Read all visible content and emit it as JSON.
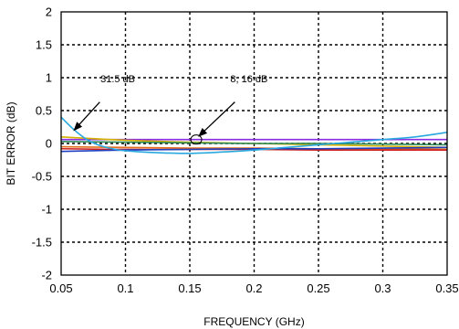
{
  "chart_data": {
    "type": "line",
    "title": "",
    "xlabel": "FREQUENCY (GHz)",
    "ylabel": "BIT ERROR (dB)",
    "xlim": [
      0.05,
      0.35
    ],
    "ylim": [
      -2,
      2
    ],
    "x_ticks": [
      0.05,
      0.1,
      0.15,
      0.2,
      0.25,
      0.3,
      0.35
    ],
    "x_tick_labels": [
      "0.05",
      "0.1",
      "0.15",
      "0.2",
      "0.25",
      "0.3",
      "0.35"
    ],
    "y_ticks": [
      2,
      1.5,
      1,
      0.5,
      0,
      -0.5,
      -1,
      -1.5,
      -2
    ],
    "y_tick_labels": [
      "2",
      "1.5",
      "1",
      "0.5",
      "0",
      "-0.5",
      "-1",
      "-1.5",
      "-2"
    ],
    "grid": true,
    "series": [
      {
        "color": "#29a8e0",
        "x": [
          0.05,
          0.06,
          0.07,
          0.08,
          0.09,
          0.1,
          0.125,
          0.15,
          0.175,
          0.2,
          0.225,
          0.25,
          0.275,
          0.3,
          0.325,
          0.35
        ],
        "y": [
          0.4,
          0.21,
          0.06,
          -0.03,
          -0.08,
          -0.11,
          -0.14,
          -0.15,
          -0.13,
          -0.1,
          -0.06,
          -0.02,
          0.02,
          0.06,
          0.1,
          0.17
        ]
      },
      {
        "color": "#8a2be2",
        "x": [
          0.05,
          0.1,
          0.15,
          0.2,
          0.25,
          0.3,
          0.35
        ],
        "y": [
          0.06,
          0.06,
          0.06,
          0.06,
          0.06,
          0.06,
          0.06
        ]
      },
      {
        "color": "#d4b000",
        "x": [
          0.05,
          0.1,
          0.15,
          0.2,
          0.25,
          0.3,
          0.35
        ],
        "y": [
          0.1,
          0.05,
          0.02,
          0.0,
          -0.02,
          -0.04,
          -0.06
        ]
      },
      {
        "color": "#2e8b57",
        "x": [
          0.05,
          0.1,
          0.15,
          0.2,
          0.25,
          0.3,
          0.35
        ],
        "y": [
          0.03,
          0.02,
          0.01,
          0.0,
          0.0,
          -0.01,
          -0.02
        ]
      },
      {
        "color": "#e07020",
        "x": [
          0.05,
          0.1,
          0.15,
          0.2,
          0.25,
          0.3,
          0.35
        ],
        "y": [
          -0.05,
          -0.06,
          -0.07,
          -0.07,
          -0.08,
          -0.08,
          -0.09
        ]
      },
      {
        "color": "#d02020",
        "x": [
          0.05,
          0.1,
          0.15,
          0.2,
          0.25,
          0.3,
          0.35
        ],
        "y": [
          -0.08,
          -0.09,
          -0.09,
          -0.09,
          -0.1,
          -0.1,
          -0.1
        ]
      },
      {
        "color": "#1f3fbf",
        "x": [
          0.05,
          0.1,
          0.15,
          0.2,
          0.25,
          0.3,
          0.35
        ],
        "y": [
          -0.12,
          -0.1,
          -0.09,
          -0.08,
          -0.08,
          -0.07,
          -0.06
        ]
      }
    ],
    "annotations": [
      {
        "text": "31.5 dB",
        "text_x": 0.094,
        "text_y": 0.93,
        "arrow_from": [
          0.08,
          0.63
        ],
        "arrow_to": [
          0.06,
          0.2
        ]
      },
      {
        "text": "8, 16 dB",
        "text_x": 0.196,
        "text_y": 0.93,
        "arrow_from": [
          0.185,
          0.63
        ],
        "arrow_to": [
          0.157,
          0.11
        ]
      }
    ],
    "annotation_circle": {
      "x": 0.155,
      "y": 0.06
    }
  }
}
